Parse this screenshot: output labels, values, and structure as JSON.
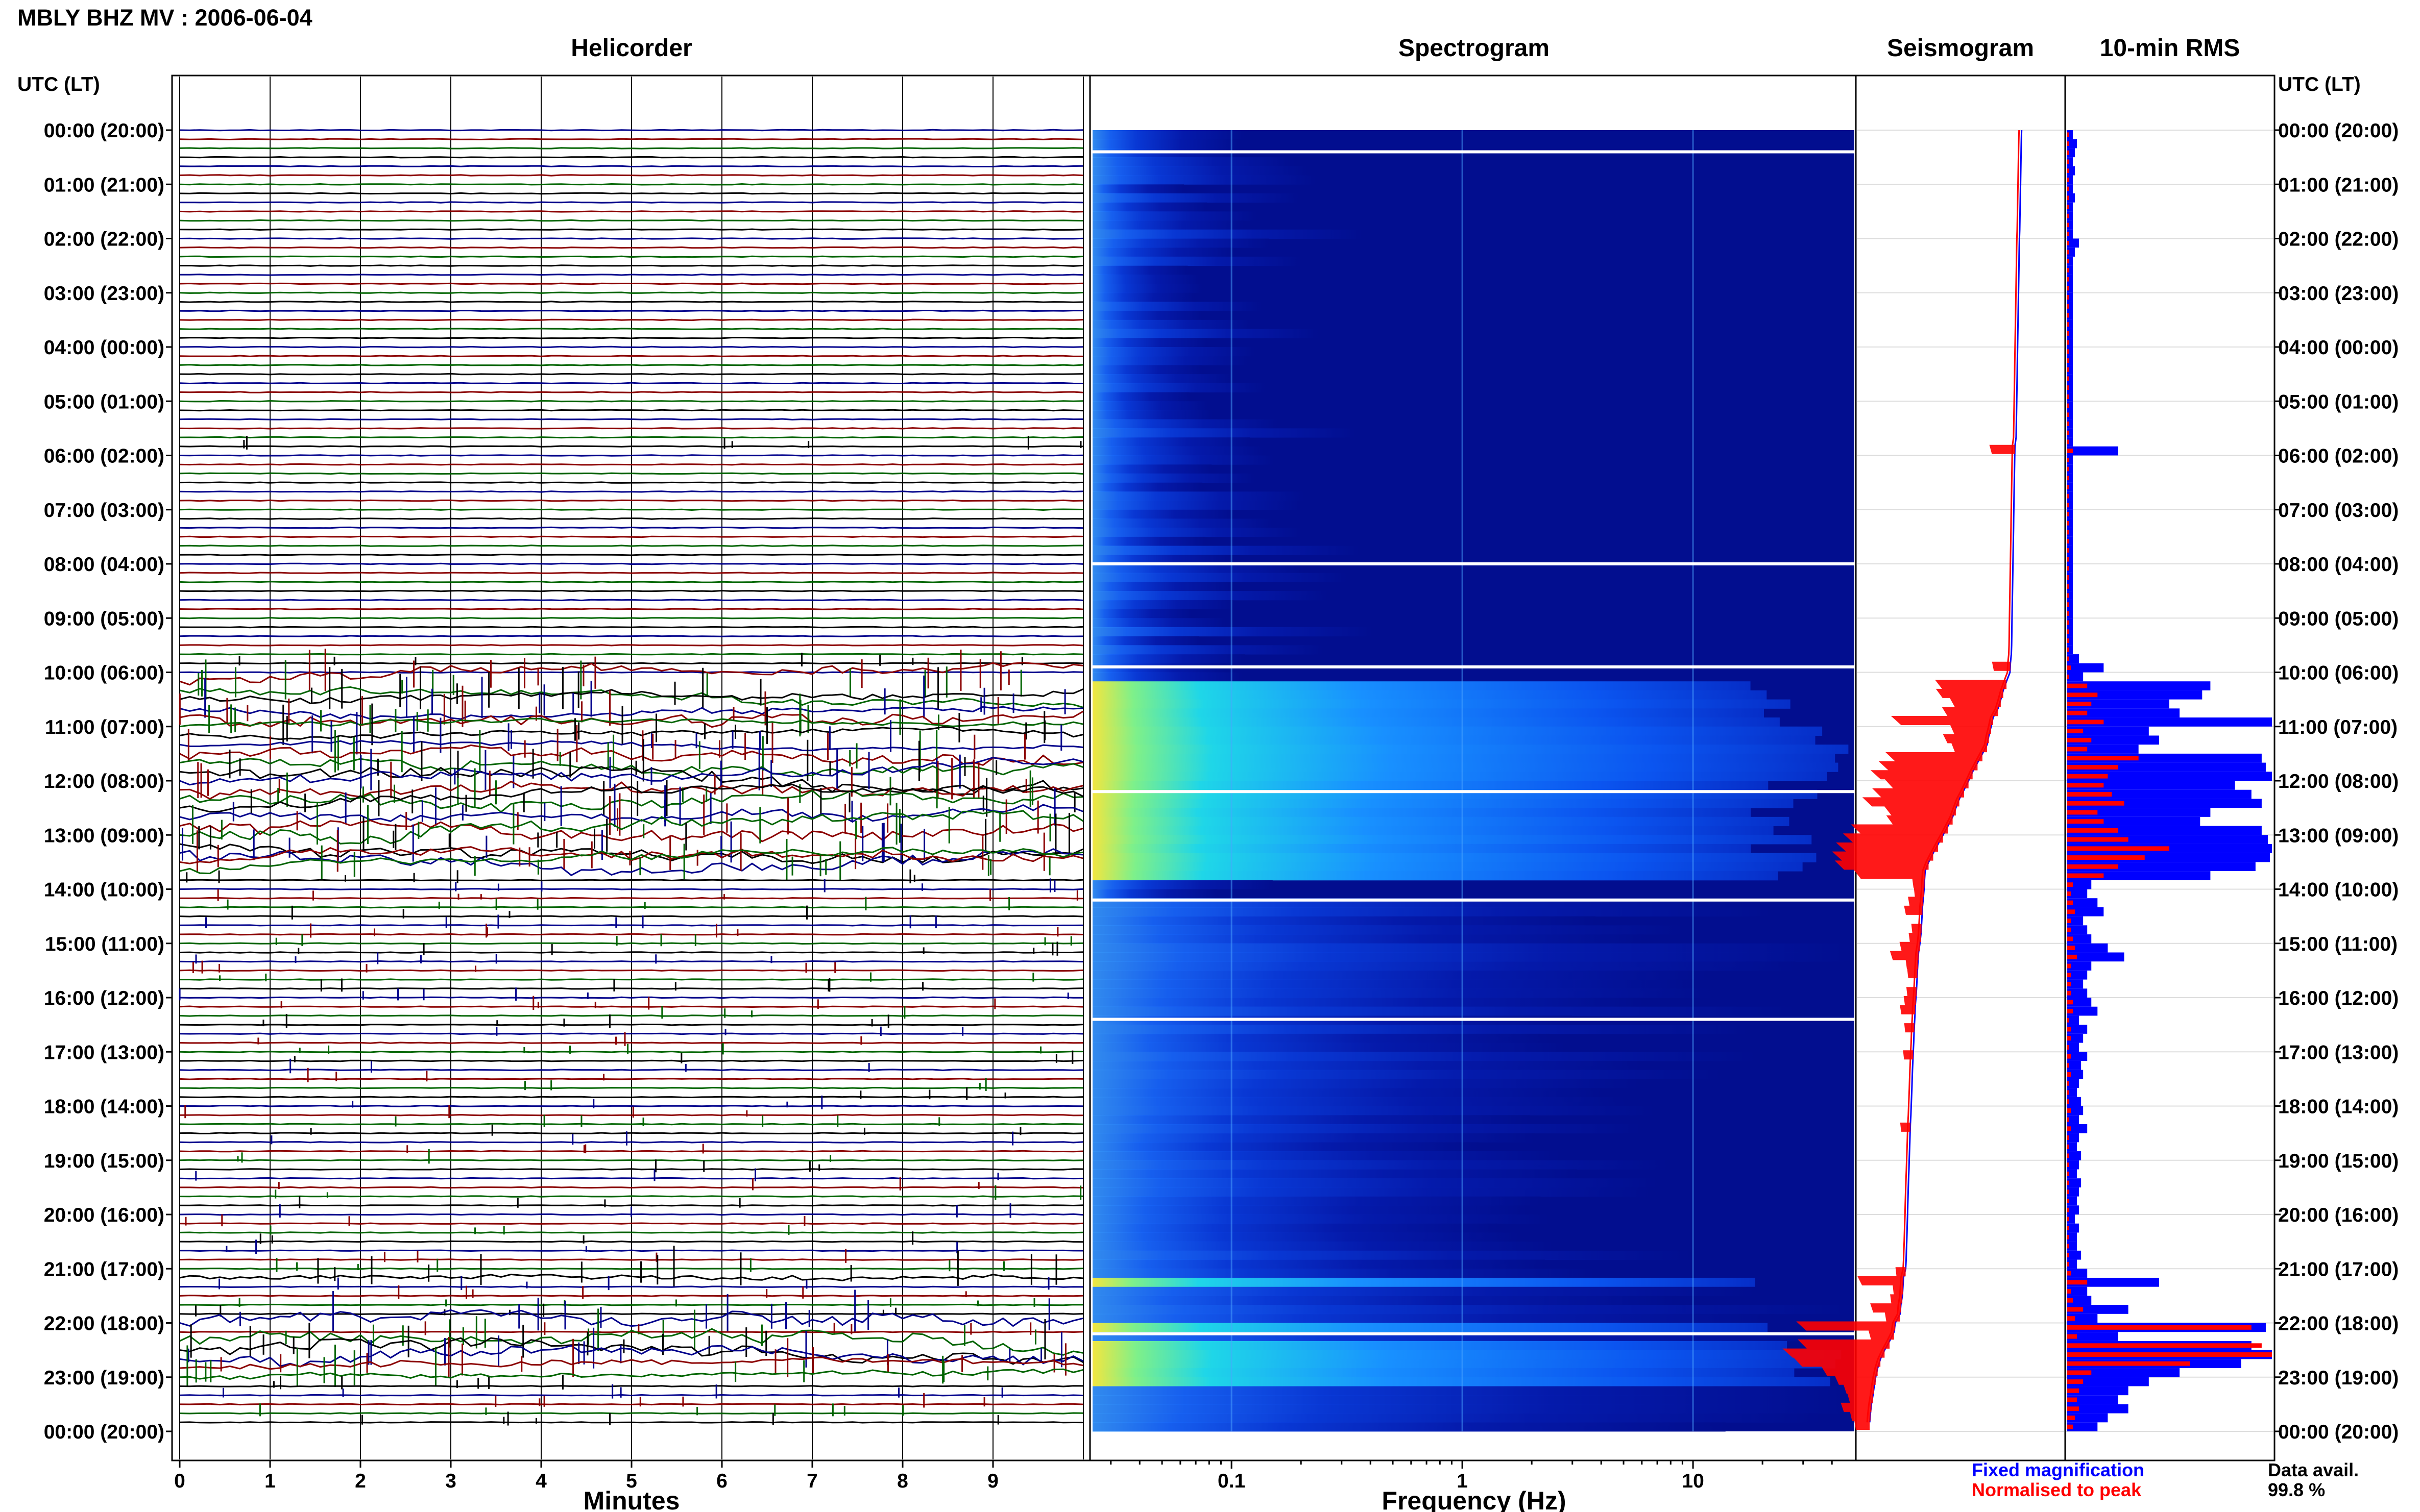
{
  "header": {
    "title": "MBLY BHZ MV : 2006-06-04"
  },
  "panels": {
    "helicorder": {
      "title": "Helicorder",
      "xlabel": "Minutes",
      "xticks": [
        "0",
        "1",
        "2",
        "3",
        "4",
        "5",
        "6",
        "7",
        "8",
        "9"
      ]
    },
    "spectrogram": {
      "title": "Spectrogram",
      "xlabel": "Frequency (Hz)",
      "xticks": [
        "0.1",
        "1",
        "10"
      ]
    },
    "seismogram": {
      "title": "Seismogram"
    },
    "rms": {
      "title": "10-min RMS"
    }
  },
  "time_axis": {
    "header": "UTC (LT)",
    "labels": [
      "00:00 (20:00)",
      "01:00 (21:00)",
      "02:00 (22:00)",
      "03:00 (23:00)",
      "04:00 (00:00)",
      "05:00 (01:00)",
      "06:00 (02:00)",
      "07:00 (03:00)",
      "08:00 (04:00)",
      "09:00 (05:00)",
      "10:00 (06:00)",
      "11:00 (07:00)",
      "12:00 (08:00)",
      "13:00 (09:00)",
      "14:00 (10:00)",
      "15:00 (11:00)",
      "16:00 (12:00)",
      "17:00 (13:00)",
      "18:00 (14:00)",
      "19:00 (15:00)",
      "20:00 (16:00)",
      "21:00 (17:00)",
      "22:00 (18:00)",
      "23:00 (19:00)",
      "00:00 (20:00)"
    ]
  },
  "legend": {
    "fixed": "Fixed magnification",
    "normalised": "Normalised to peak",
    "avail_label": "Data avail.",
    "avail_value": "99.8 %"
  },
  "colors": {
    "fixed": "#0000ff",
    "normalised": "#ff0000",
    "trace_cycle": [
      "#00008b",
      "#8b0000",
      "#006400",
      "#000000"
    ]
  },
  "chart_data": {
    "type": "helicorder-spectrogram-rms",
    "station": "MBLY BHZ MV",
    "date": "2006-06-04",
    "helicorder": {
      "rows": 144,
      "minutes_per_row": 10,
      "xlim": [
        0,
        10
      ]
    },
    "spectrogram": {
      "xscale": "log",
      "xlim": [
        0.025,
        50
      ]
    },
    "rms_10min": {
      "hours": [
        0,
        0.1667,
        0.3333,
        0.5,
        0.6667,
        0.8333,
        1,
        1.1667,
        1.3333,
        1.5,
        1.6667,
        1.8333,
        2,
        2.1667,
        2.3333,
        2.5,
        2.6667,
        2.8333,
        3,
        3.1667,
        3.3333,
        3.5,
        3.6667,
        3.8333,
        4,
        4.1667,
        4.3333,
        4.5,
        4.6667,
        4.8333,
        5,
        5.1667,
        5.3333,
        5.5,
        5.6667,
        5.8333,
        6,
        6.1667,
        6.3333,
        6.5,
        6.6667,
        6.8333,
        7,
        7.1667,
        7.3333,
        7.5,
        7.6667,
        7.8333,
        8,
        8.1667,
        8.3333,
        8.5,
        8.6667,
        8.8333,
        9,
        9.1667,
        9.3333,
        9.5,
        9.6667,
        9.8333,
        10,
        10.1667,
        10.3333,
        10.5,
        10.6667,
        10.8333,
        11,
        11.1667,
        11.3333,
        11.5,
        11.6667,
        11.8333,
        12,
        12.1667,
        12.3333,
        12.5,
        12.6667,
        12.8333,
        13,
        13.1667,
        13.3333,
        13.5,
        13.6667,
        13.8333,
        14,
        14.1667,
        14.3333,
        14.5,
        14.6667,
        14.8333,
        15,
        15.1667,
        15.3333,
        15.5,
        15.6667,
        15.8333,
        16,
        16.1667,
        16.3333,
        16.5,
        16.6667,
        16.8333,
        17,
        17.1667,
        17.3333,
        17.5,
        17.6667,
        17.8333,
        18,
        18.1667,
        18.3333,
        18.5,
        18.6667,
        18.8333,
        19,
        19.1667,
        19.3333,
        19.5,
        19.6667,
        19.8333,
        20,
        20.1667,
        20.3333,
        20.5,
        20.6667,
        20.8333,
        21,
        21.1667,
        21.3333,
        21.5,
        21.6667,
        21.8333,
        22,
        22.1667,
        22.3333,
        22.5,
        22.6667,
        22.8333,
        23,
        23.1667,
        23.3333,
        23.5,
        23.6667,
        23.8333
      ],
      "fixed": [
        0.03,
        0.05,
        0.04,
        0.03,
        0.04,
        0.03,
        0.03,
        0.04,
        0.03,
        0.03,
        0.03,
        0.03,
        0.06,
        0.04,
        0.03,
        0.03,
        0.03,
        0.03,
        0.03,
        0.03,
        0.03,
        0.03,
        0.03,
        0.03,
        0.03,
        0.03,
        0.03,
        0.03,
        0.03,
        0.03,
        0.03,
        0.03,
        0.03,
        0.03,
        0.03,
        0.25,
        0.03,
        0.03,
        0.03,
        0.03,
        0.03,
        0.03,
        0.03,
        0.03,
        0.03,
        0.03,
        0.03,
        0.03,
        0.03,
        0.03,
        0.03,
        0.03,
        0.03,
        0.03,
        0.03,
        0.03,
        0.03,
        0.03,
        0.06,
        0.18,
        0.08,
        0.7,
        0.66,
        0.5,
        0.55,
        1.0,
        0.4,
        0.45,
        0.35,
        0.95,
        0.97,
        1.0,
        0.82,
        0.9,
        0.95,
        0.7,
        0.65,
        0.95,
        0.98,
        1.0,
        0.99,
        0.92,
        0.7,
        0.12,
        0.1,
        0.15,
        0.18,
        0.08,
        0.1,
        0.12,
        0.2,
        0.28,
        0.12,
        0.1,
        0.08,
        0.1,
        0.12,
        0.15,
        0.06,
        0.1,
        0.08,
        0.06,
        0.1,
        0.07,
        0.08,
        0.06,
        0.05,
        0.07,
        0.08,
        0.06,
        0.1,
        0.06,
        0.05,
        0.07,
        0.06,
        0.05,
        0.07,
        0.06,
        0.05,
        0.06,
        0.04,
        0.06,
        0.05,
        0.05,
        0.07,
        0.05,
        0.1,
        0.45,
        0.1,
        0.12,
        0.3,
        0.15,
        0.97,
        0.25,
        0.9,
        1.0,
        0.85,
        0.55,
        0.4,
        0.3,
        0.25,
        0.3,
        0.2,
        0.15,
        0.12,
        0.1
      ],
      "normalised": [
        0.01,
        0.01,
        0.01,
        0.01,
        0.01,
        0.01,
        0.01,
        0.01,
        0.01,
        0.01,
        0.01,
        0.01,
        0.01,
        0.01,
        0.01,
        0.01,
        0.01,
        0.01,
        0.01,
        0.01,
        0.01,
        0.01,
        0.01,
        0.01,
        0.01,
        0.01,
        0.01,
        0.01,
        0.01,
        0.01,
        0.01,
        0.01,
        0.01,
        0.01,
        0.01,
        0.03,
        0.01,
        0.01,
        0.01,
        0.01,
        0.01,
        0.01,
        0.01,
        0.01,
        0.01,
        0.01,
        0.01,
        0.01,
        0.01,
        0.01,
        0.01,
        0.01,
        0.01,
        0.01,
        0.01,
        0.01,
        0.01,
        0.01,
        0.01,
        0.02,
        0.01,
        0.1,
        0.15,
        0.12,
        0.1,
        0.18,
        0.08,
        0.12,
        0.1,
        0.35,
        0.25,
        0.2,
        0.18,
        0.22,
        0.28,
        0.15,
        0.18,
        0.25,
        0.3,
        0.5,
        0.38,
        0.25,
        0.18,
        0.03,
        0.02,
        0.03,
        0.04,
        0.02,
        0.02,
        0.03,
        0.04,
        0.05,
        0.02,
        0.02,
        0.02,
        0.02,
        0.03,
        0.03,
        0.01,
        0.02,
        0.02,
        0.01,
        0.02,
        0.01,
        0.02,
        0.01,
        0.01,
        0.01,
        0.02,
        0.01,
        0.02,
        0.01,
        0.01,
        0.01,
        0.01,
        0.01,
        0.01,
        0.01,
        0.01,
        0.01,
        0.01,
        0.01,
        0.01,
        0.01,
        0.01,
        0.01,
        0.02,
        0.1,
        0.02,
        0.03,
        0.08,
        0.04,
        0.9,
        0.05,
        0.95,
        1.0,
        0.6,
        0.12,
        0.08,
        0.06,
        0.05,
        0.06,
        0.04,
        0.03,
        0.03,
        0.02
      ]
    }
  }
}
